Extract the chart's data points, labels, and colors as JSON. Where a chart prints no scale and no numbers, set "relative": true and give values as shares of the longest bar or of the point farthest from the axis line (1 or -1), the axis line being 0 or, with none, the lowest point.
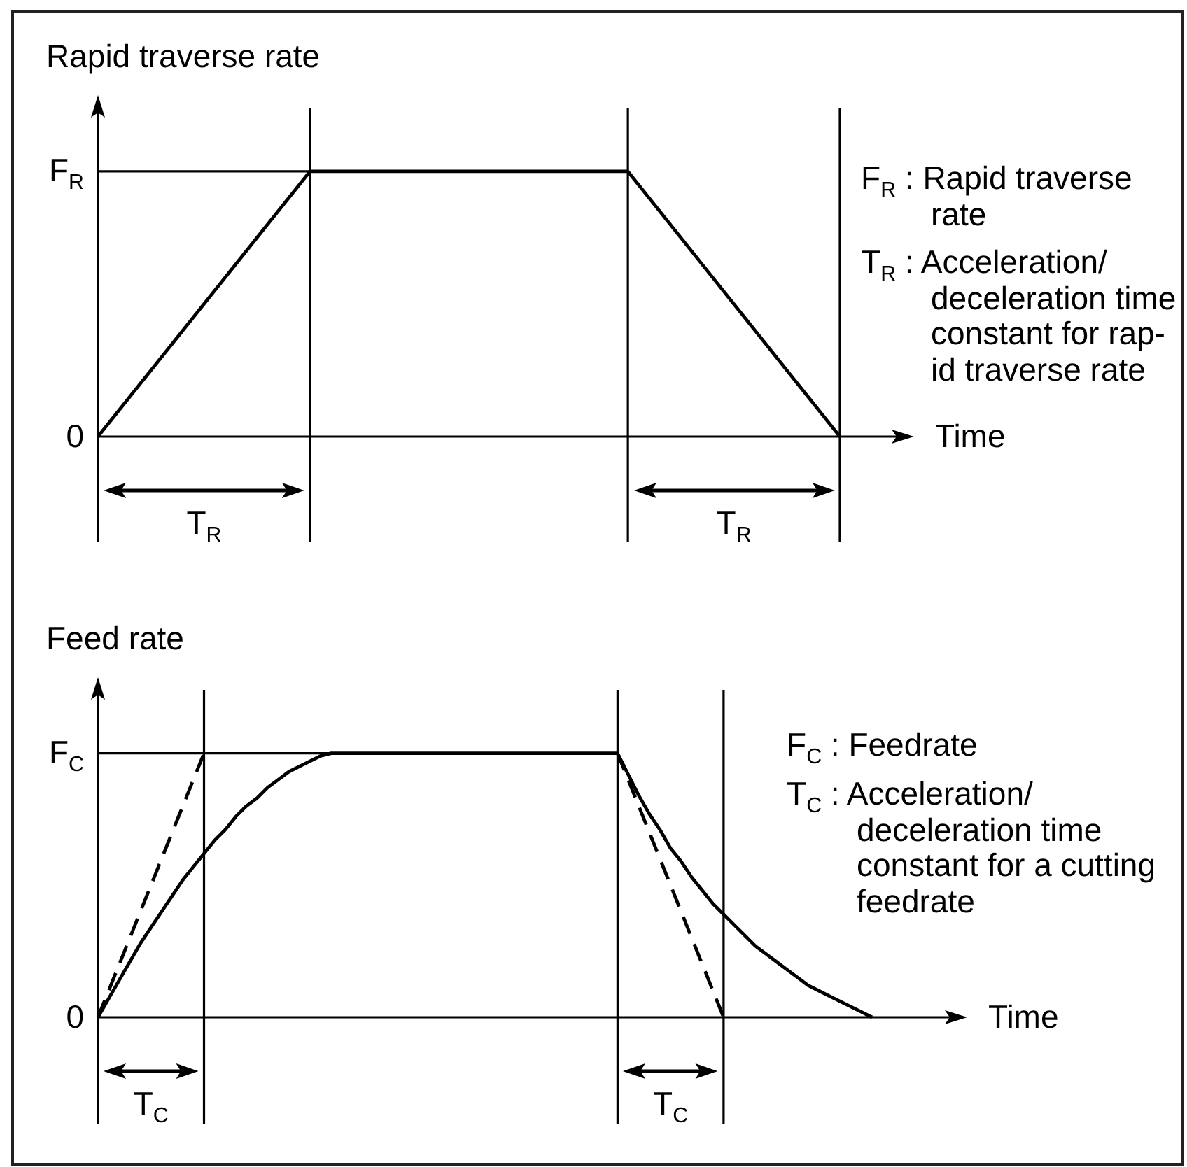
{
  "chart_data": [
    {
      "type": "line",
      "relative": true,
      "ylabel": "Rapid traverse rate",
      "xlabel": "Time",
      "grid": "x",
      "categories": [
        null,
        null,
        null,
        null,
        null,
        null,
        null,
        null
      ],
      "series": [
        {
          "color": "#000000",
          "values": [
            0,
            0.5,
            1,
            1,
            1,
            1,
            0.5,
            0
          ]
        }
      ],
      "ref_lines": [
        {
          "axis": "y",
          "value": 1,
          "label": "F$_{R}$"
        }
      ],
      "annotations": [
        "0",
        "T$_{R}$",
        "T$_{R}$",
        "F$_{R}$ : Rapid traverse\nrate",
        "T$_{R}$ : Acceleration/\ndeceleration time\nconstant for rap-\nid traverse rate"
      ]
    },
    {
      "type": "line",
      "relative": true,
      "ylabel": "Feed rate",
      "xlabel": "Time",
      "grid": "x",
      "categories": [
        null,
        null,
        null,
        null,
        null,
        null,
        null,
        null,
        null,
        null,
        null,
        null,
        null,
        null,
        null,
        null,
        null,
        null,
        null,
        null,
        null,
        null,
        null,
        null,
        null,
        null,
        null,
        null,
        null,
        null,
        null,
        null,
        null,
        null,
        null,
        null,
        null,
        null,
        null,
        null,
        null,
        null,
        null,
        null,
        null,
        null,
        null,
        null,
        null,
        null,
        null,
        null,
        null,
        null,
        null,
        null,
        null,
        null,
        null,
        null,
        null,
        null,
        null,
        null,
        null,
        null,
        null,
        null,
        null,
        null,
        null,
        null,
        null,
        null
      ],
      "series": [
        {
          "color": "#000000",
          "values": [
            0,
            0.07,
            0.14,
            0.21,
            0.28,
            0.34,
            0.4,
            0.46,
            0.52,
            0.57,
            0.62,
            0.67,
            0.71,
            0.76,
            0.8,
            0.83,
            0.87,
            0.9,
            0.93,
            0.95,
            0.97,
            0.99,
            1,
            1,
            1,
            1,
            1,
            1,
            1,
            1,
            1,
            1,
            1,
            1,
            1,
            1,
            1,
            1,
            1,
            1,
            1,
            1,
            1,
            1,
            1,
            1,
            1,
            1,
            1,
            1,
            0.92,
            0.84,
            0.77,
            0.71,
            0.64,
            0.59,
            0.53,
            0.48,
            0.43,
            0.39,
            0.35,
            0.31,
            0.27,
            0.24,
            0.21,
            0.18,
            0.15,
            0.12,
            0.1,
            0.08,
            0.06,
            0.04,
            0.02,
            0
          ]
        },
        {
          "color": "#000000",
          "line_style": "dashed",
          "values": [
            0,
            0.1,
            0.2,
            0.3,
            0.4,
            0.5,
            0.6,
            0.7,
            0.8,
            0.9,
            1,
            null,
            null,
            null,
            null,
            null,
            null,
            null,
            null,
            null,
            null,
            null,
            null,
            null,
            null,
            null,
            null,
            null,
            null,
            null,
            null,
            null,
            null,
            null,
            null,
            null,
            null,
            null,
            null,
            null,
            null,
            null,
            null,
            null,
            null,
            null,
            null,
            null,
            null,
            1,
            0.9,
            0.8,
            0.7,
            0.6,
            0.5,
            0.4,
            0.3,
            0.2,
            0.1,
            0,
            null,
            null,
            null,
            null,
            null,
            null,
            null,
            null,
            null,
            null,
            null,
            null,
            null,
            null
          ]
        }
      ],
      "ref_lines": [
        {
          "axis": "y",
          "value": 1,
          "label": "F$_{C}$"
        }
      ],
      "annotations": [
        "0",
        "T$_{C}$",
        "T$_{C}$",
        "F$_{C}$ : Feedrate",
        "T$_{C}$ : Acceleration/\ndeceleration time\nconstant for a cutting\nfeedrate"
      ]
    }
  ]
}
